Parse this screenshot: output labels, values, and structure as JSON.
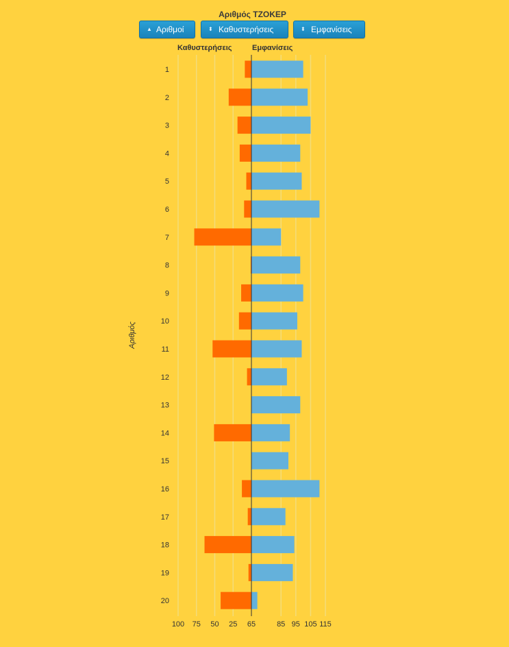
{
  "chart_title": "Αριθμός ΤΖΟΚΕΡ",
  "buttons": [
    {
      "label": "Αριθμοί",
      "icon": "sort-asc-icon"
    },
    {
      "label": "Καθυστερήσεις",
      "icon": "sort-icon"
    },
    {
      "label": "Εμφανίσεις",
      "icon": "sort-icon"
    }
  ],
  "colors": {
    "background": "#FFD23F",
    "delays": "#FF6A00",
    "appearances": "#64B1DB",
    "grid": "#F3DC7A"
  },
  "chart_data": {
    "type": "bar",
    "orientation": "horizontal",
    "layout": "diverging",
    "y_axis_label": "Αριθμός",
    "left_header": "Καθυστερήσεις",
    "right_header": "Εμφανίσεις",
    "categories": [
      "1",
      "2",
      "3",
      "4",
      "5",
      "6",
      "7",
      "8",
      "9",
      "10",
      "11",
      "12",
      "13",
      "14",
      "15",
      "16",
      "17",
      "18",
      "19",
      "20"
    ],
    "series": [
      {
        "name": "Καθυστερήσεις",
        "side": "left",
        "values": [
          9,
          31,
          19,
          16,
          7,
          10,
          78,
          1,
          14,
          17,
          53,
          6,
          0,
          51,
          0,
          13,
          5,
          64,
          4,
          42
        ]
      },
      {
        "name": "Εμφανίσεις",
        "side": "right",
        "values": [
          100,
          103,
          105,
          98,
          99,
          111,
          85,
          98,
          100,
          96,
          99,
          89,
          98,
          91,
          90,
          111,
          88,
          94,
          93,
          69
        ]
      }
    ],
    "left_axis": {
      "ticks": [
        100,
        75,
        50,
        25,
        0
      ],
      "range": [
        0,
        100
      ]
    },
    "right_axis": {
      "ticks": [
        65,
        85,
        95,
        105,
        115
      ],
      "range": [
        65,
        115
      ]
    },
    "grid": true
  }
}
